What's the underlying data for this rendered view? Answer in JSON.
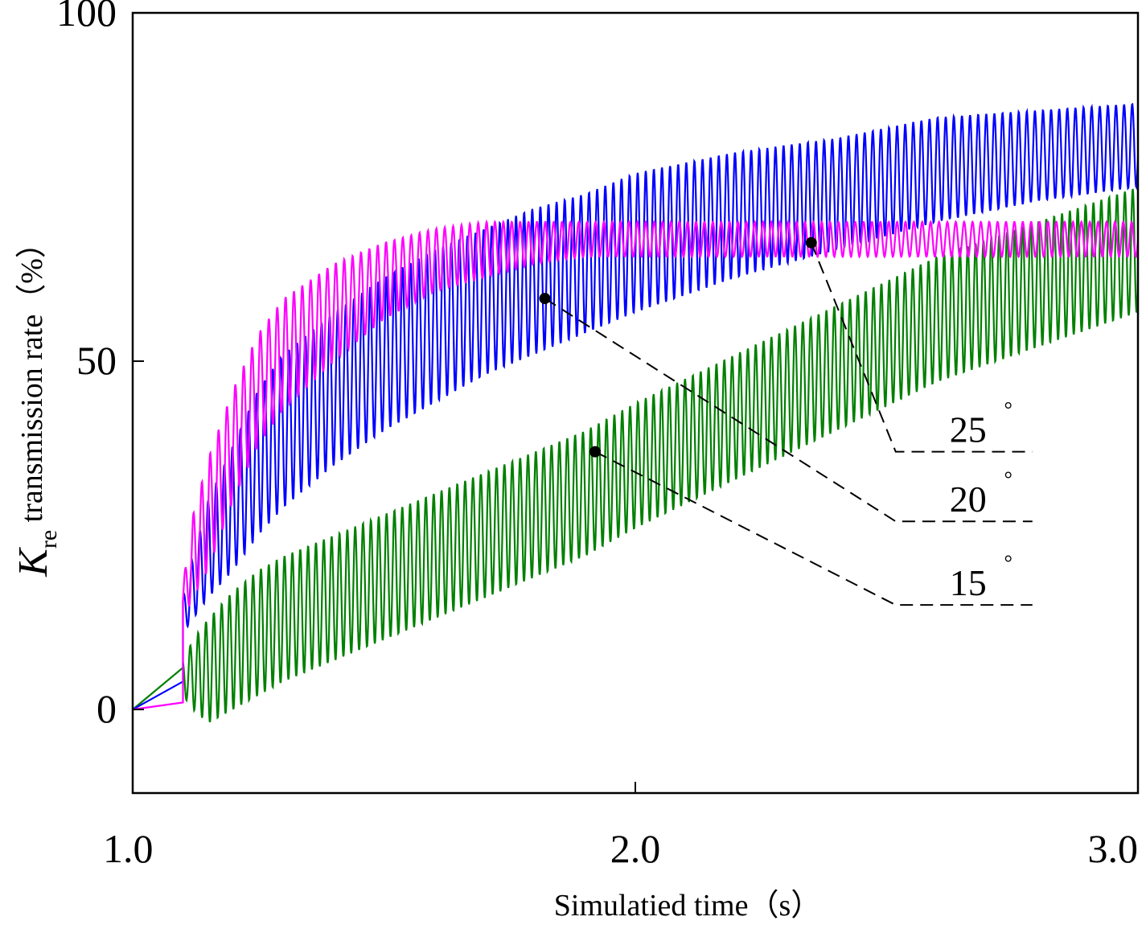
{
  "chart_data": {
    "type": "line",
    "title": "",
    "xlabel": "Simulatied time（s）",
    "ylabel": {
      "symbol": "K",
      "subscript": "re",
      "text": " transmission rate（%）"
    },
    "xlim": [
      1.0,
      3.0
    ],
    "ylim": [
      -12,
      100
    ],
    "x_ticks": [
      1.0,
      2.0,
      3.0
    ],
    "x_tick_labels": [
      "1.0",
      "2.0",
      "3.0"
    ],
    "y_ticks": [
      0,
      50,
      100
    ],
    "y_tick_labels": [
      "0",
      "50",
      "100"
    ],
    "grid": false,
    "legend": "none",
    "series": [
      {
        "name": "25°",
        "color": "#ff00ff",
        "upper_envelope": [
          [
            1.1,
            18
          ],
          [
            1.12,
            28
          ],
          [
            1.15,
            36
          ],
          [
            1.2,
            46
          ],
          [
            1.25,
            54
          ],
          [
            1.3,
            59
          ],
          [
            1.4,
            64
          ],
          [
            1.5,
            67
          ],
          [
            1.6,
            69
          ],
          [
            1.7,
            70
          ],
          [
            1.8,
            70
          ],
          [
            1.9,
            70
          ],
          [
            2.0,
            70
          ],
          [
            2.2,
            70
          ],
          [
            2.4,
            70
          ],
          [
            2.6,
            70
          ],
          [
            2.8,
            70
          ],
          [
            3.0,
            70
          ]
        ],
        "lower_envelope": [
          [
            1.1,
            13
          ],
          [
            1.12,
            16
          ],
          [
            1.15,
            20
          ],
          [
            1.2,
            30
          ],
          [
            1.25,
            38
          ],
          [
            1.3,
            43
          ],
          [
            1.4,
            50
          ],
          [
            1.5,
            56
          ],
          [
            1.6,
            60
          ],
          [
            1.7,
            62
          ],
          [
            1.8,
            64
          ],
          [
            1.9,
            65
          ],
          [
            2.0,
            65
          ],
          [
            2.2,
            65
          ],
          [
            2.4,
            65
          ],
          [
            2.6,
            65
          ],
          [
            2.8,
            65
          ],
          [
            3.0,
            65
          ]
        ]
      },
      {
        "name": "20°",
        "color": "#0000ff",
        "upper_envelope": [
          [
            1.1,
            16
          ],
          [
            1.12,
            22
          ],
          [
            1.15,
            30
          ],
          [
            1.2,
            38
          ],
          [
            1.25,
            46
          ],
          [
            1.3,
            51
          ],
          [
            1.4,
            57
          ],
          [
            1.5,
            62
          ],
          [
            1.6,
            66
          ],
          [
            1.7,
            69
          ],
          [
            1.8,
            72
          ],
          [
            1.9,
            74
          ],
          [
            2.0,
            77
          ],
          [
            2.2,
            80
          ],
          [
            2.4,
            82
          ],
          [
            2.6,
            85
          ],
          [
            2.8,
            86
          ],
          [
            3.0,
            87
          ]
        ],
        "lower_envelope": [
          [
            1.1,
            11
          ],
          [
            1.12,
            13
          ],
          [
            1.15,
            16
          ],
          [
            1.2,
            20
          ],
          [
            1.25,
            25
          ],
          [
            1.3,
            29
          ],
          [
            1.4,
            35
          ],
          [
            1.5,
            40
          ],
          [
            1.6,
            44
          ],
          [
            1.7,
            48
          ],
          [
            1.8,
            51
          ],
          [
            1.9,
            54
          ],
          [
            2.0,
            57
          ],
          [
            2.2,
            62
          ],
          [
            2.4,
            66
          ],
          [
            2.6,
            70
          ],
          [
            2.8,
            73
          ],
          [
            3.0,
            75
          ]
        ]
      },
      {
        "name": "15°",
        "color": "#008000",
        "upper_envelope": [
          [
            1.1,
            7
          ],
          [
            1.12,
            10
          ],
          [
            1.15,
            13
          ],
          [
            1.2,
            17
          ],
          [
            1.25,
            20
          ],
          [
            1.3,
            22
          ],
          [
            1.4,
            25
          ],
          [
            1.5,
            28
          ],
          [
            1.6,
            31
          ],
          [
            1.7,
            34
          ],
          [
            1.8,
            37
          ],
          [
            1.9,
            40
          ],
          [
            2.0,
            44
          ],
          [
            2.2,
            51
          ],
          [
            2.4,
            58
          ],
          [
            2.6,
            65
          ],
          [
            2.8,
            70
          ],
          [
            3.0,
            75
          ]
        ],
        "lower_envelope": [
          [
            1.1,
            2
          ],
          [
            1.12,
            0
          ],
          [
            1.15,
            -2
          ],
          [
            1.2,
            0
          ],
          [
            1.25,
            2
          ],
          [
            1.3,
            4
          ],
          [
            1.4,
            7
          ],
          [
            1.5,
            10
          ],
          [
            1.6,
            13
          ],
          [
            1.7,
            16
          ],
          [
            1.8,
            19
          ],
          [
            1.9,
            22
          ],
          [
            2.0,
            26
          ],
          [
            2.2,
            33
          ],
          [
            2.4,
            40
          ],
          [
            2.6,
            47
          ],
          [
            2.8,
            52
          ],
          [
            3.0,
            57
          ]
        ]
      }
    ],
    "annotations": [
      {
        "label": "25",
        "unit": "°",
        "series": "25°",
        "point": [
          2.35,
          67
        ],
        "text_anchor": [
          2.79,
          37
        ]
      },
      {
        "label": "20",
        "unit": "°",
        "series": "20°",
        "point": [
          1.82,
          59
        ],
        "text_anchor": [
          2.79,
          27
        ]
      },
      {
        "label": "15",
        "unit": "°",
        "series": "15°",
        "point": [
          1.92,
          37
        ],
        "text_anchor": [
          2.79,
          15
        ]
      }
    ]
  }
}
